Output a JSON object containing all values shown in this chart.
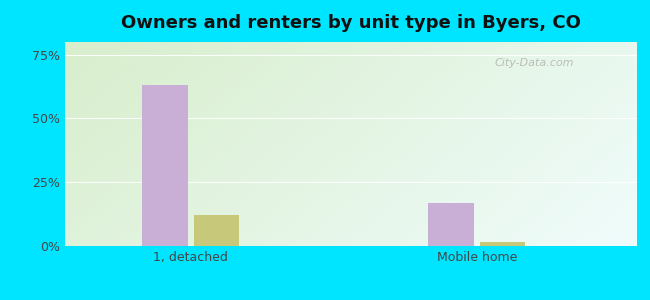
{
  "title": "Owners and renters by unit type in Byers, CO",
  "categories": [
    "1, detached",
    "Mobile home"
  ],
  "owner_values": [
    63.0,
    17.0
  ],
  "renter_values": [
    12.0,
    1.5
  ],
  "owner_color": "#c9aed6",
  "renter_color": "#c8c87a",
  "yticks": [
    0,
    25,
    50,
    75
  ],
  "ytick_labels": [
    "0%",
    "25%",
    "50%",
    "75%"
  ],
  "ylim": [
    0,
    80
  ],
  "bar_width": 0.08,
  "group_centers": [
    0.22,
    0.72
  ],
  "background_outer": "#00e5ff",
  "background_inner_color1": "#d8eecc",
  "background_inner_color2": "#eaf5f5",
  "title_fontsize": 13,
  "watermark": "City-Data.com",
  "figsize": [
    6.5,
    3.0
  ],
  "dpi": 100
}
